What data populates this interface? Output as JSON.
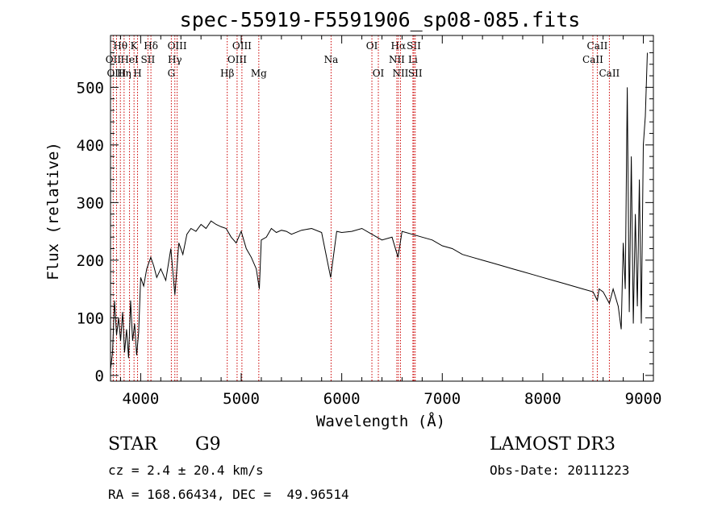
{
  "chart_data": {
    "type": "line",
    "title": "spec-55919-F5591906_sp08-085.fits",
    "xlabel": "Wavelength (Å)",
    "ylabel": "Flux (relative)",
    "xlim": [
      3700,
      9100
    ],
    "ylim": [
      -10,
      590
    ],
    "xticks": [
      4000,
      5000,
      6000,
      7000,
      8000,
      9000
    ],
    "xtick_labels": [
      "4000",
      "5000",
      "6000",
      "7000",
      "8000",
      "9000"
    ],
    "yticks": [
      0,
      100,
      200,
      300,
      400,
      500
    ],
    "ytick_labels": [
      "0",
      "100",
      "200",
      "300",
      "400",
      "500"
    ],
    "line_color": "#000000",
    "marker_color": "#cc0000",
    "spectrum": {
      "x": [
        3700,
        3720,
        3740,
        3760,
        3780,
        3800,
        3820,
        3840,
        3860,
        3880,
        3900,
        3920,
        3940,
        3960,
        3980,
        4000,
        4030,
        4060,
        4100,
        4130,
        4160,
        4200,
        4250,
        4300,
        4340,
        4380,
        4420,
        4460,
        4500,
        4550,
        4600,
        4650,
        4700,
        4750,
        4800,
        4850,
        4900,
        4950,
        5000,
        5050,
        5100,
        5150,
        5180,
        5200,
        5250,
        5300,
        5350,
        5400,
        5450,
        5500,
        5600,
        5700,
        5800,
        5890,
        5950,
        6000,
        6100,
        6200,
        6300,
        6400,
        6500,
        6560,
        6600,
        6700,
        6800,
        6900,
        7000,
        7100,
        7200,
        7300,
        7400,
        7500,
        7600,
        7700,
        7800,
        7900,
        8000,
        8100,
        8200,
        8300,
        8400,
        8500,
        8542,
        8560,
        8600,
        8662,
        8700,
        8750,
        8780,
        8800,
        8820,
        8840,
        8860,
        8880,
        8900,
        8920,
        8940,
        8960,
        8980,
        9000,
        9020,
        9040
      ],
      "y": [
        10,
        40,
        130,
        70,
        100,
        60,
        110,
        40,
        80,
        30,
        130,
        60,
        90,
        35,
        75,
        170,
        155,
        185,
        205,
        190,
        170,
        185,
        165,
        220,
        140,
        230,
        210,
        245,
        255,
        250,
        262,
        255,
        268,
        262,
        258,
        255,
        240,
        230,
        250,
        220,
        205,
        185,
        150,
        235,
        240,
        255,
        248,
        252,
        250,
        245,
        252,
        255,
        248,
        170,
        250,
        248,
        250,
        255,
        245,
        235,
        240,
        205,
        250,
        245,
        240,
        235,
        225,
        220,
        210,
        205,
        200,
        195,
        190,
        185,
        180,
        175,
        170,
        165,
        160,
        155,
        150,
        145,
        130,
        150,
        145,
        125,
        150,
        120,
        80,
        230,
        150,
        500,
        110,
        380,
        90,
        280,
        120,
        340,
        90,
        400,
        450,
        560
      ]
    },
    "lines": [
      {
        "label": "Hθ",
        "wl": 3798,
        "row": 0
      },
      {
        "label": "OII",
        "wl": 3727,
        "row": 1
      },
      {
        "label": "OIII",
        "wl": 3760,
        "row": 2
      },
      {
        "label": "K",
        "wl": 3934,
        "row": 0
      },
      {
        "label": "HeI",
        "wl": 3889,
        "row": 1
      },
      {
        "label": "Hη",
        "wl": 3835,
        "row": 2
      },
      {
        "label": "Hδ",
        "wl": 4102,
        "row": 0
      },
      {
        "label": "SII",
        "wl": 4072,
        "row": 1
      },
      {
        "label": "H",
        "wl": 3969,
        "row": 2
      },
      {
        "label": "OIII",
        "wl": 4363,
        "row": 0
      },
      {
        "label": "Hγ",
        "wl": 4340,
        "row": 1
      },
      {
        "label": "G",
        "wl": 4305,
        "row": 2
      },
      {
        "label": "OIII",
        "wl": 5007,
        "row": 0
      },
      {
        "label": "OIII",
        "wl": 4959,
        "row": 1
      },
      {
        "label": "Hβ",
        "wl": 4861,
        "row": 2
      },
      {
        "label": "Mg",
        "wl": 5175,
        "row": 2
      },
      {
        "label": "Na",
        "wl": 5894,
        "row": 1
      },
      {
        "label": "OI",
        "wl": 6300,
        "row": 0
      },
      {
        "label": "OI",
        "wl": 6364,
        "row": 2
      },
      {
        "label": "Hα",
        "wl": 6563,
        "row": 0
      },
      {
        "label": "NII",
        "wl": 6548,
        "row": 1
      },
      {
        "label": "NII",
        "wl": 6584,
        "row": 2
      },
      {
        "label": "SII",
        "wl": 6717,
        "row": 0
      },
      {
        "label": "Li",
        "wl": 6708,
        "row": 1
      },
      {
        "label": "SII",
        "wl": 6731,
        "row": 2
      },
      {
        "label": "CaII",
        "wl": 8542,
        "row": 0
      },
      {
        "label": "CaII",
        "wl": 8498,
        "row": 1
      },
      {
        "label": "CaII",
        "wl": 8662,
        "row": 2
      }
    ]
  },
  "info": {
    "object_class": "STAR",
    "subclass": "G9",
    "survey": "LAMOST DR3",
    "redshift": "cz = 2.4 ± 20.4 km/s",
    "obs_date": "Obs-Date: 20111223",
    "coords": "RA = 168.66434, DEC =  49.96514"
  }
}
